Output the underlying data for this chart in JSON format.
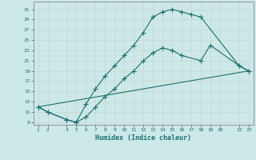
{
  "xlabel": "Humidex (Indice chaleur)",
  "bg_color": "#cce8e8",
  "grid_color": "#b0d0d0",
  "line_color": "#1a7070",
  "spine_color": "#888888",
  "xlim": [
    0.5,
    23.5
  ],
  "ylim": [
    8.5,
    32.5
  ],
  "xticks": [
    1,
    2,
    4,
    5,
    6,
    7,
    8,
    9,
    10,
    11,
    12,
    13,
    14,
    15,
    16,
    17,
    18,
    19,
    20,
    22,
    23
  ],
  "yticks": [
    9,
    11,
    13,
    15,
    17,
    19,
    21,
    23,
    25,
    27,
    29,
    31
  ],
  "line1_x": [
    1,
    2,
    4,
    5,
    6,
    7,
    8,
    9,
    10,
    11,
    12,
    13,
    14,
    15,
    16,
    17,
    18,
    22,
    23
  ],
  "line1_y": [
    12,
    11,
    9.5,
    9,
    12.5,
    15.5,
    18,
    20,
    22,
    24,
    26.5,
    29.5,
    30.5,
    31,
    30.5,
    30,
    29.5,
    20,
    19
  ],
  "line2_x": [
    1,
    2,
    4,
    5,
    6,
    7,
    8,
    9,
    10,
    11,
    12,
    13,
    14,
    15,
    16,
    18,
    19,
    22,
    23
  ],
  "line2_y": [
    12,
    11,
    9.5,
    9,
    10,
    12,
    14,
    15.5,
    17.5,
    19,
    21,
    22.5,
    23.5,
    23,
    22,
    21,
    24,
    20,
    19
  ],
  "line3_x": [
    1,
    23
  ],
  "line3_y": [
    12,
    19
  ]
}
